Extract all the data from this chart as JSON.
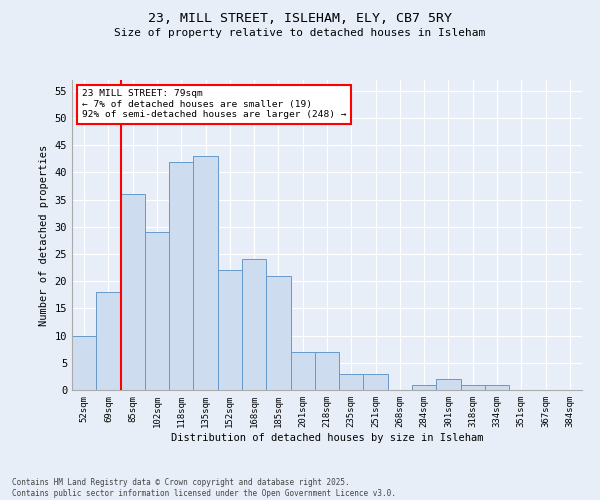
{
  "title1": "23, MILL STREET, ISLEHAM, ELY, CB7 5RY",
  "title2": "Size of property relative to detached houses in Isleham",
  "xlabel": "Distribution of detached houses by size in Isleham",
  "ylabel": "Number of detached properties",
  "categories": [
    "52sqm",
    "69sqm",
    "85sqm",
    "102sqm",
    "118sqm",
    "135sqm",
    "152sqm",
    "168sqm",
    "185sqm",
    "201sqm",
    "218sqm",
    "235sqm",
    "251sqm",
    "268sqm",
    "284sqm",
    "301sqm",
    "318sqm",
    "334sqm",
    "351sqm",
    "367sqm",
    "384sqm"
  ],
  "values": [
    10,
    18,
    36,
    29,
    42,
    43,
    22,
    24,
    21,
    7,
    7,
    3,
    3,
    0,
    1,
    2,
    1,
    1,
    0,
    0,
    0
  ],
  "bar_color": "#cddcee",
  "bar_edge_color": "#6699cc",
  "red_line_x": 1.5,
  "annotation_title": "23 MILL STREET: 79sqm",
  "annotation_line1": "← 7% of detached houses are smaller (19)",
  "annotation_line2": "92% of semi-detached houses are larger (248) →",
  "background_color": "#e8eef8",
  "grid_color": "#ffffff",
  "footer1": "Contains HM Land Registry data © Crown copyright and database right 2025.",
  "footer2": "Contains public sector information licensed under the Open Government Licence v3.0.",
  "ylim": [
    0,
    57
  ],
  "yticks": [
    0,
    5,
    10,
    15,
    20,
    25,
    30,
    35,
    40,
    45,
    50,
    55
  ]
}
